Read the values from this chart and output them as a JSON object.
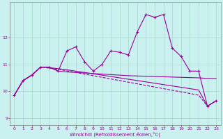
{
  "xlabel": "Windchill (Refroidissement éolien,°C)",
  "background_color": "#caf0f0",
  "line_color": "#990099",
  "grid_color": "#aaddcc",
  "xlim": [
    -0.5,
    23.5
  ],
  "ylim": [
    8.75,
    13.3
  ],
  "xticks": [
    0,
    1,
    2,
    3,
    4,
    5,
    6,
    7,
    8,
    9,
    10,
    11,
    12,
    13,
    14,
    15,
    16,
    17,
    18,
    19,
    20,
    21,
    22,
    23
  ],
  "yticks": [
    9,
    10,
    11,
    12
  ],
  "series": {
    "line_jagged": [
      9.85,
      10.4,
      10.6,
      10.9,
      10.9,
      10.75,
      11.5,
      11.65,
      11.1,
      10.75,
      11.0,
      11.5,
      11.45,
      11.35,
      12.2,
      12.85,
      12.75,
      12.85,
      11.6,
      11.3,
      10.75,
      10.75,
      9.45,
      9.65
    ],
    "line_flat": [
      9.85,
      10.4,
      10.6,
      10.9,
      10.9,
      10.75,
      10.72,
      10.7,
      10.68,
      10.66,
      10.64,
      10.62,
      10.6,
      10.58,
      10.57,
      10.56,
      10.55,
      10.54,
      10.53,
      10.52,
      10.51,
      10.5,
      10.48,
      10.47
    ],
    "line_gradual1": [
      9.85,
      10.4,
      10.6,
      10.9,
      10.88,
      10.84,
      10.8,
      10.75,
      10.7,
      10.65,
      10.6,
      10.55,
      10.5,
      10.45,
      10.4,
      10.35,
      10.3,
      10.25,
      10.2,
      10.15,
      10.1,
      10.05,
      9.45,
      9.65
    ],
    "line_gradual2": [
      9.85,
      10.4,
      10.6,
      10.9,
      10.86,
      10.82,
      10.76,
      10.7,
      10.64,
      10.58,
      10.52,
      10.46,
      10.4,
      10.34,
      10.28,
      10.22,
      10.16,
      10.1,
      10.04,
      9.98,
      9.92,
      9.86,
      9.45,
      9.65
    ]
  }
}
